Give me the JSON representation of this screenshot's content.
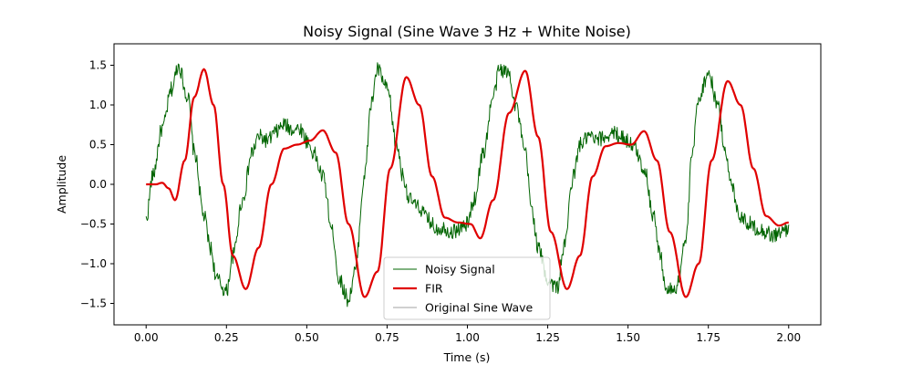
{
  "chart_data": {
    "type": "line",
    "title": "Noisy Signal (Sine Wave 3 Hz + White Noise)",
    "xlabel": "Time (s)",
    "ylabel": "Amplitude",
    "xlim": [
      -0.1,
      2.1
    ],
    "ylim": [
      -1.77,
      1.77
    ],
    "xticks": [
      0.0,
      0.25,
      0.5,
      0.75,
      1.0,
      1.25,
      1.5,
      1.75,
      2.0
    ],
    "xtick_labels": [
      "0.00",
      "0.25",
      "0.50",
      "0.75",
      "1.00",
      "1.25",
      "1.50",
      "1.75",
      "2.00"
    ],
    "yticks": [
      -1.5,
      -1.0,
      -0.5,
      0.0,
      0.5,
      1.0,
      1.5
    ],
    "ytick_labels": [
      "−1.5",
      "−1.0",
      "−0.5",
      "0.0",
      "0.5",
      "1.0",
      "1.5"
    ],
    "grid": false,
    "legend_position": "lower-center",
    "series": [
      {
        "name": "Noisy Signal",
        "color": "#006400",
        "style": "noisy",
        "x": [
          0.0,
          0.02,
          0.05,
          0.08,
          0.1,
          0.13,
          0.15,
          0.18,
          0.2,
          0.22,
          0.25,
          0.27,
          0.3,
          0.33,
          0.35,
          0.38,
          0.4,
          0.43,
          0.45,
          0.48,
          0.5,
          0.52,
          0.55,
          0.58,
          0.6,
          0.63,
          0.65,
          0.68,
          0.7,
          0.72,
          0.75,
          0.78,
          0.8,
          0.82,
          0.85,
          0.88,
          0.9,
          0.93,
          0.95,
          0.98,
          1.0,
          1.02,
          1.05,
          1.08,
          1.1,
          1.13,
          1.15,
          1.18,
          1.2,
          1.22,
          1.25,
          1.28,
          1.3,
          1.33,
          1.35,
          1.38,
          1.4,
          1.43,
          1.45,
          1.48,
          1.5,
          1.52,
          1.55,
          1.58,
          1.6,
          1.62,
          1.65,
          1.68,
          1.7,
          1.72,
          1.75,
          1.78,
          1.8,
          1.82,
          1.85,
          1.88,
          1.9,
          1.93,
          1.95,
          1.98,
          2.0
        ],
        "y": [
          -0.45,
          0.1,
          0.7,
          1.2,
          1.5,
          1.1,
          0.4,
          -0.4,
          -0.8,
          -1.2,
          -1.35,
          -0.9,
          -0.2,
          0.4,
          0.6,
          0.55,
          0.65,
          0.75,
          0.7,
          0.7,
          0.55,
          0.4,
          0.1,
          -0.6,
          -1.2,
          -1.45,
          -1.1,
          0.1,
          1.0,
          1.45,
          1.2,
          0.5,
          0.1,
          -0.2,
          -0.3,
          -0.45,
          -0.55,
          -0.55,
          -0.6,
          -0.55,
          -0.5,
          -0.2,
          0.4,
          1.1,
          1.45,
          1.4,
          1.0,
          0.4,
          -0.3,
          -0.8,
          -1.2,
          -1.3,
          -0.8,
          0.1,
          0.5,
          0.6,
          0.55,
          0.6,
          0.65,
          0.6,
          0.55,
          0.45,
          0.2,
          -0.4,
          -0.9,
          -1.35,
          -1.3,
          -0.7,
          0.4,
          1.1,
          1.4,
          1.0,
          0.5,
          0.0,
          -0.4,
          -0.5,
          -0.55,
          -0.6,
          -0.65,
          -0.6,
          -0.55
        ]
      },
      {
        "name": "FIR",
        "color": "#e00000",
        "style": "smooth",
        "x": [
          0.0,
          0.03,
          0.05,
          0.07,
          0.09,
          0.12,
          0.15,
          0.18,
          0.21,
          0.24,
          0.27,
          0.31,
          0.35,
          0.39,
          0.43,
          0.47,
          0.51,
          0.55,
          0.59,
          0.63,
          0.68,
          0.72,
          0.76,
          0.81,
          0.85,
          0.89,
          0.93,
          0.97,
          1.01,
          1.04,
          1.08,
          1.13,
          1.18,
          1.22,
          1.26,
          1.31,
          1.35,
          1.39,
          1.43,
          1.47,
          1.51,
          1.55,
          1.59,
          1.63,
          1.68,
          1.72,
          1.76,
          1.81,
          1.85,
          1.89,
          1.93,
          1.97,
          2.0
        ],
        "y": [
          0.0,
          0.0,
          0.02,
          -0.05,
          -0.2,
          0.3,
          1.1,
          1.45,
          1.0,
          0.0,
          -0.9,
          -1.32,
          -0.8,
          0.0,
          0.45,
          0.5,
          0.55,
          0.68,
          0.4,
          -0.5,
          -1.42,
          -1.1,
          0.2,
          1.35,
          1.0,
          0.1,
          -0.42,
          -0.48,
          -0.5,
          -0.68,
          -0.2,
          0.9,
          1.43,
          0.6,
          -0.6,
          -1.32,
          -0.9,
          0.1,
          0.48,
          0.52,
          0.5,
          0.67,
          0.3,
          -0.6,
          -1.42,
          -1.0,
          0.3,
          1.3,
          1.0,
          0.2,
          -0.4,
          -0.52,
          -0.48
        ]
      },
      {
        "name": "Original Sine Wave",
        "color": "#808080",
        "style": "thin",
        "x": [],
        "y": []
      }
    ]
  }
}
